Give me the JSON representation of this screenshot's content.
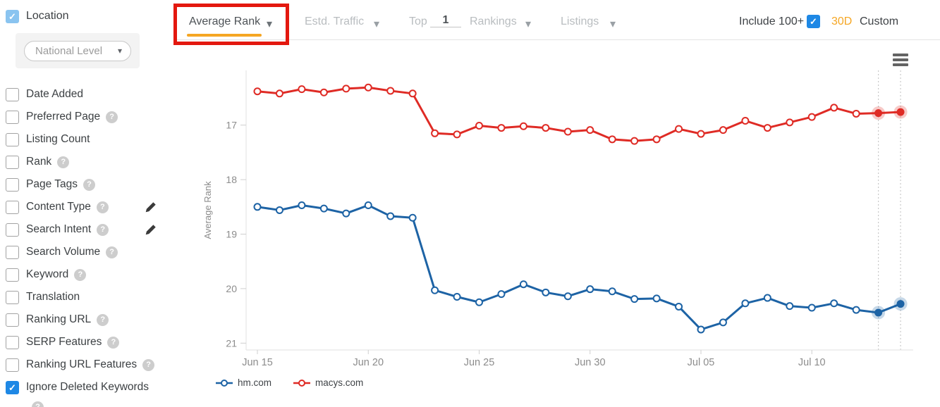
{
  "topbar": {
    "tabs": {
      "average_rank": "Average Rank",
      "estd_traffic": "Estd. Traffic",
      "top_prefix": "Top",
      "top_value": "1",
      "top_suffix": "Rankings",
      "listings": "Listings"
    },
    "include_100_label": "Include 100+",
    "include_100_checked": true,
    "range_30d_label": "30D",
    "custom_label": "Custom"
  },
  "sidebar": {
    "location": {
      "label": "Location",
      "checked": true
    },
    "location_select": {
      "value": "National Level"
    },
    "filters": [
      {
        "label": "Date Added",
        "checked": false,
        "help": false,
        "edit": false
      },
      {
        "label": "Preferred Page",
        "checked": false,
        "help": true,
        "edit": false
      },
      {
        "label": "Listing Count",
        "checked": false,
        "help": false,
        "edit": false
      },
      {
        "label": "Rank",
        "checked": false,
        "help": true,
        "edit": false
      },
      {
        "label": "Page Tags",
        "checked": false,
        "help": true,
        "edit": false
      },
      {
        "label": "Content Type",
        "checked": false,
        "help": true,
        "edit": true
      },
      {
        "label": "Search Intent",
        "checked": false,
        "help": true,
        "edit": true
      },
      {
        "label": "Search Volume",
        "checked": false,
        "help": true,
        "edit": false
      },
      {
        "label": "Keyword",
        "checked": false,
        "help": true,
        "edit": false
      },
      {
        "label": "Translation",
        "checked": false,
        "help": false,
        "edit": false
      },
      {
        "label": "Ranking URL",
        "checked": false,
        "help": true,
        "edit": false
      },
      {
        "label": "SERP Features",
        "checked": false,
        "help": true,
        "edit": false
      },
      {
        "label": "Ranking URL Features",
        "checked": false,
        "help": true,
        "edit": false
      },
      {
        "label": "Ignore Deleted Keywords",
        "checked": true,
        "help": true,
        "edit": false,
        "help_below": true
      }
    ]
  },
  "chart_data": {
    "type": "line",
    "ylabel": "Average Rank",
    "y_inverted": true,
    "ylim": [
      16,
      21
    ],
    "yticks": [
      17,
      18,
      19,
      20,
      21
    ],
    "grid": false,
    "legend_position": "bottom-left",
    "highlight_last_n": 2,
    "x": [
      "Jun 15",
      "Jun 16",
      "Jun 17",
      "Jun 18",
      "Jun 19",
      "Jun 20",
      "Jun 21",
      "Jun 22",
      "Jun 23",
      "Jun 24",
      "Jun 25",
      "Jun 26",
      "Jun 27",
      "Jun 28",
      "Jun 29",
      "Jun 30",
      "Jul 01",
      "Jul 02",
      "Jul 03",
      "Jul 04",
      "Jul 05",
      "Jul 06",
      "Jul 07",
      "Jul 08",
      "Jul 09",
      "Jul 10",
      "Jul 11",
      "Jul 12",
      "Jul 13",
      "Jul 14"
    ],
    "x_tick_labels": [
      "Jun 15",
      "Jun 20",
      "Jun 25",
      "Jun 30",
      "Jul 05",
      "Jul 10"
    ],
    "x_tick_positions": [
      0,
      5,
      10,
      15,
      20,
      25
    ],
    "series": [
      {
        "name": "hm.com",
        "color": "#1d63a5",
        "values": [
          18.5,
          18.56,
          18.47,
          18.53,
          18.62,
          18.47,
          18.67,
          18.7,
          20.03,
          20.15,
          20.25,
          20.1,
          19.92,
          20.07,
          20.14,
          20.01,
          20.05,
          20.19,
          20.18,
          20.33,
          20.75,
          20.62,
          20.27,
          20.17,
          20.32,
          20.35,
          20.27,
          20.39,
          20.44,
          20.28
        ]
      },
      {
        "name": "macys.com",
        "color": "#df2b25",
        "values": [
          16.38,
          16.42,
          16.34,
          16.4,
          16.33,
          16.31,
          16.37,
          16.42,
          17.15,
          17.17,
          17.01,
          17.05,
          17.02,
          17.05,
          17.12,
          17.09,
          17.26,
          17.29,
          17.26,
          17.07,
          17.16,
          17.09,
          16.92,
          17.05,
          16.95,
          16.85,
          16.68,
          16.79,
          16.78,
          16.76
        ]
      }
    ]
  },
  "colors": {
    "accent_orange": "#f5a623",
    "checkbox_blue": "#1e88e5",
    "location_checkbox_blue": "#8ac4f0",
    "annotation_red": "#e3180f",
    "series_blue": "#1d63a5",
    "series_red": "#df2b25"
  },
  "icons": {
    "caret_down": "▾",
    "check": "✓",
    "help_glyph": "?",
    "pencil": "pencil-icon",
    "menu": "hamburger-menu-icon"
  }
}
